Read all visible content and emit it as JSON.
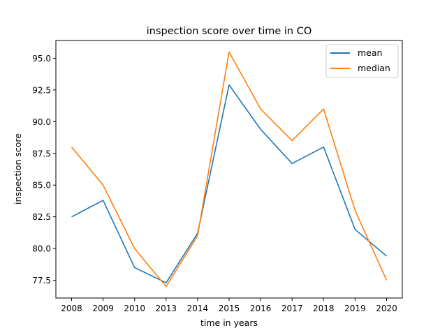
{
  "chart_data": {
    "type": "line",
    "title": "inspection score over time in CO",
    "xlabel": "time in years",
    "ylabel": "inspection score",
    "categories": [
      "2008",
      "2009",
      "2010",
      "2013",
      "2014",
      "2015",
      "2016",
      "2017",
      "2018",
      "2019",
      "2020"
    ],
    "series": [
      {
        "name": "mean",
        "color": "#1f77b4",
        "values": [
          82.5,
          83.8,
          78.5,
          77.3,
          81.2,
          92.9,
          89.4,
          86.7,
          88.0,
          81.5,
          79.4
        ]
      },
      {
        "name": "median",
        "color": "#ff7f0e",
        "values": [
          88.0,
          85.0,
          80.0,
          77.0,
          81.0,
          95.5,
          91.0,
          88.5,
          91.0,
          83.0,
          77.5
        ]
      }
    ],
    "ylim": [
      76.1,
      96.4
    ],
    "yticks": [
      "77.5",
      "80.0",
      "82.5",
      "85.0",
      "87.5",
      "90.0",
      "92.5",
      "95.0"
    ],
    "grid": false,
    "legend": "top-right"
  }
}
